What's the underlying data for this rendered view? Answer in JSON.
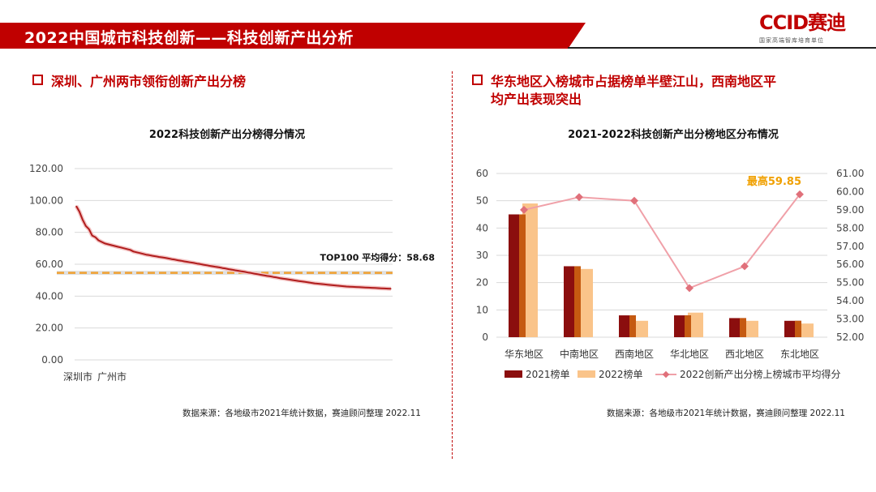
{
  "header": {
    "title": "2022中国城市科技创新——科技创新产出分析"
  },
  "logo": {
    "text": "CCID赛迪",
    "sub": "国家高端智库培育单位"
  },
  "left": {
    "section_title": "深圳、广州两市领衔创新产出分榜",
    "source": "数据来源：各地级市2021年统计数据，赛迪顾问整理 2022.11"
  },
  "right": {
    "section_title_line1": "华东地区入榜城市占据榜单半壁江山，西南地区平",
    "section_title_line2": "均产出表现突出",
    "source": "数据来源：各地级市2021年统计数据，赛迪顾问整理 2022.11"
  },
  "colors": {
    "accent": "#c00000",
    "dark_red": "#8b0e0e",
    "orange": "#c55a11",
    "light_orange": "#fac48a",
    "pink_line": "#f0a0a8",
    "pink_marker": "#e0707a",
    "gold": "#f0a000"
  },
  "chart_data": [
    {
      "type": "line",
      "title": "2022科技创新产出分榜得分情况",
      "ylim": [
        0,
        120
      ],
      "yticks": [
        "0.00",
        "20.00",
        "40.00",
        "60.00",
        "80.00",
        "100.00",
        "120.00"
      ],
      "x_labels": [
        "深圳市",
        "广州市"
      ],
      "series": [
        {
          "values": [
            96.5,
            93,
            88,
            84,
            82,
            78,
            77,
            75,
            74,
            73,
            72.5,
            72,
            71.5,
            71,
            70.5,
            70,
            69.5,
            69,
            68,
            67.5,
            67,
            66.5,
            66,
            65.7,
            65.3,
            65,
            64.6,
            64.3,
            64,
            63.6,
            63.2,
            62.9,
            62.5,
            62.2,
            61.8,
            61.5,
            61.1,
            60.8,
            60.4,
            60.1,
            59.7,
            59.4,
            59,
            58.7,
            58.3,
            58,
            57.6,
            57.3,
            56.9,
            56.6,
            56.2,
            55.9,
            55.5,
            55.2,
            54.8,
            54.5,
            54.1,
            53.8,
            53.4,
            53.1,
            52.7,
            52.4,
            52,
            51.7,
            51.3,
            51,
            50.7,
            50.4,
            50.1,
            49.8,
            49.5,
            49.2,
            48.9,
            48.6,
            48.3,
            48,
            47.8,
            47.6,
            47.4,
            47.2,
            47,
            46.8,
            46.6,
            46.4,
            46.2,
            46,
            45.9,
            45.8,
            45.7,
            45.6,
            45.5,
            45.4,
            45.3,
            45.2,
            45.1,
            45,
            44.9,
            44.8,
            44.7,
            44.6
          ]
        }
      ],
      "reference_line": {
        "value": 58.68,
        "label": "TOP100 平均得分：58.68"
      }
    },
    {
      "type": "bar",
      "title": "2021-2022科技创新产出分榜地区分布情况",
      "categories": [
        "华东地区",
        "中南地区",
        "西南地区",
        "华北地区",
        "西北地区",
        "东北地区"
      ],
      "ylim": [
        0,
        60
      ],
      "yticks": [
        "0",
        "10",
        "20",
        "30",
        "40",
        "50",
        "60"
      ],
      "y2lim": [
        52,
        61
      ],
      "y2ticks": [
        "52.00",
        "53.00",
        "54.00",
        "55.00",
        "56.00",
        "57.00",
        "58.00",
        "59.00",
        "60.00",
        "61.00"
      ],
      "series": [
        {
          "name": "2021榜单",
          "values": [
            45,
            26,
            8,
            8,
            7,
            6
          ]
        },
        {
          "name": "2022榜单",
          "values": [
            49,
            25,
            6,
            9,
            6,
            5
          ]
        },
        {
          "name": "2022创新产出分榜上榜城市平均得分",
          "axis": "right",
          "values": [
            59.0,
            59.7,
            59.5,
            54.7,
            55.9,
            59.85
          ]
        }
      ],
      "annotation": "最高59.85"
    }
  ]
}
